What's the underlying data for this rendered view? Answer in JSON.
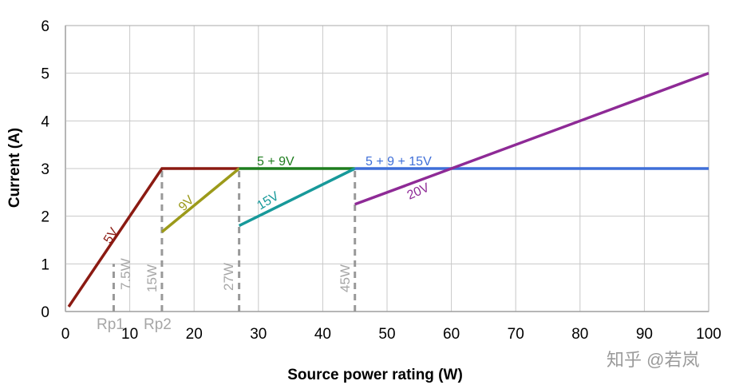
{
  "chart_data": {
    "type": "line",
    "title": "",
    "xlabel": "Source power rating (W)",
    "ylabel": "Current (A)",
    "xlim": [
      0,
      100
    ],
    "ylim": [
      0,
      6
    ],
    "xticks": [
      "0",
      "10",
      "20",
      "30",
      "40",
      "50",
      "60",
      "70",
      "80",
      "90",
      "100"
    ],
    "yticks": [
      "0",
      "1",
      "2",
      "3",
      "4",
      "5",
      "6"
    ],
    "grid": true,
    "series": [
      {
        "name": "5V",
        "color": "#8b1a12",
        "x": [
          0.5,
          15,
          27
        ],
        "y": [
          0.1,
          3,
          3
        ]
      },
      {
        "name": "9V",
        "color": "#9c9a1a",
        "x": [
          15,
          27
        ],
        "y": [
          1.67,
          3
        ]
      },
      {
        "name": "5 + 9V",
        "color": "#1e7d1e",
        "x": [
          27,
          45
        ],
        "y": [
          3,
          3
        ]
      },
      {
        "name": "15V",
        "color": "#17999a",
        "x": [
          27,
          45
        ],
        "y": [
          1.8,
          3
        ]
      },
      {
        "name": "5 + 9 + 15V",
        "color": "#3f6fd8",
        "x": [
          45,
          100
        ],
        "y": [
          3,
          3
        ]
      },
      {
        "name": "20V",
        "color": "#8e2a96",
        "x": [
          45,
          100
        ],
        "y": [
          2.25,
          5
        ]
      }
    ],
    "markers": [
      {
        "x": 7.5,
        "top": 1.0,
        "label": "7.5W",
        "sublabel": "Rp1"
      },
      {
        "x": 15,
        "top": 3,
        "label": "15W",
        "sublabel": "Rp2"
      },
      {
        "x": 27,
        "top": 3,
        "label": "27W",
        "sublabel": ""
      },
      {
        "x": 45,
        "top": 3,
        "label": "45W",
        "sublabel": ""
      }
    ],
    "marker_color": "#999999"
  },
  "watermark": "知乎 @若岚"
}
